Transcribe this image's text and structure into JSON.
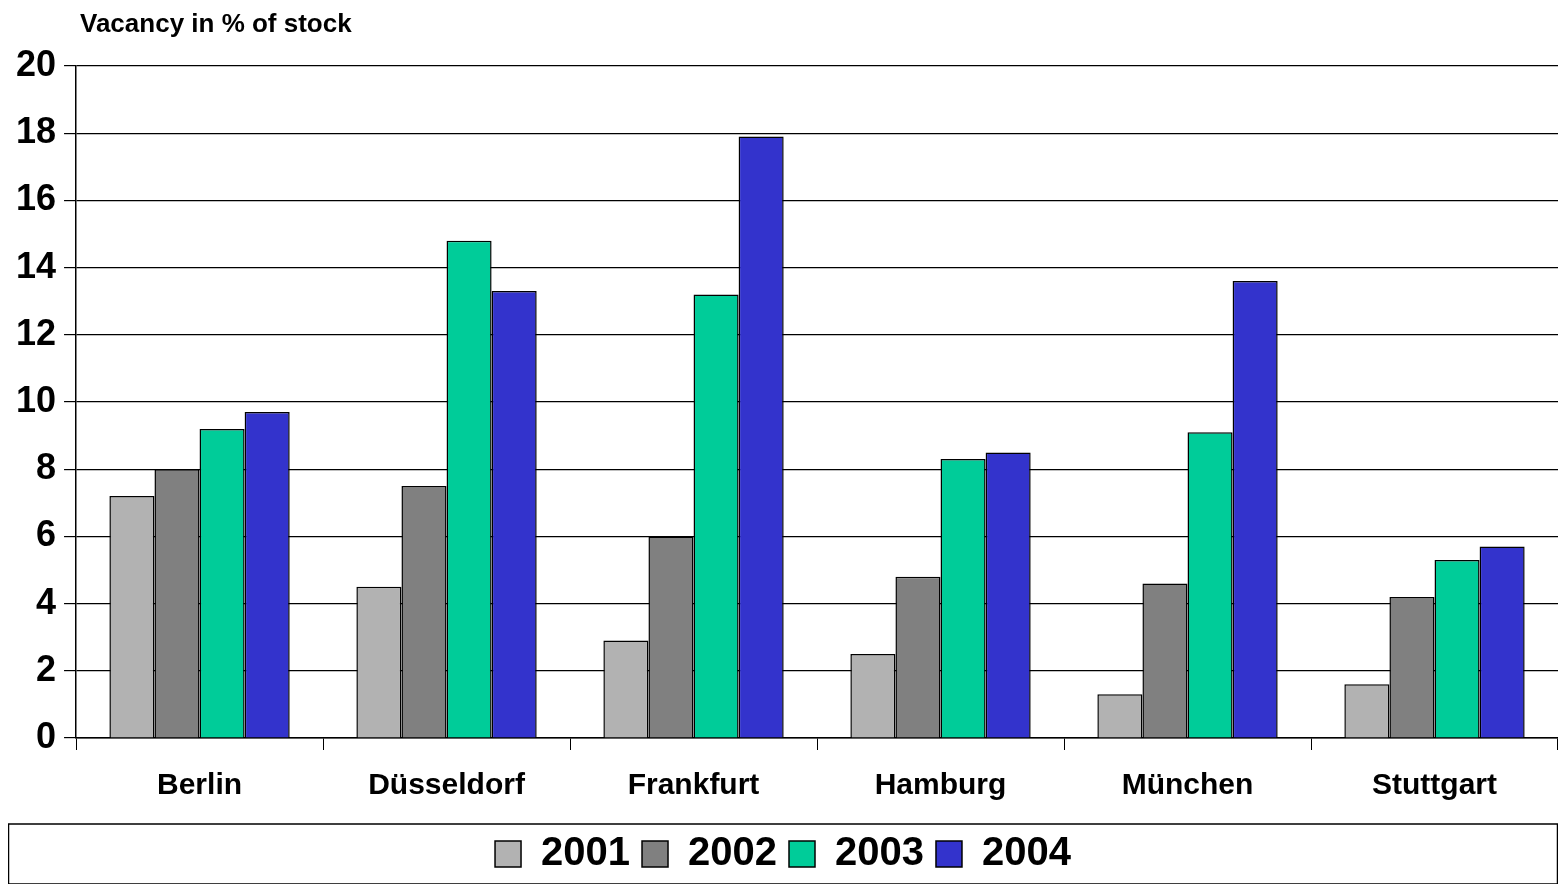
{
  "chart_data": {
    "type": "bar",
    "ylabel": "Vacancy in % of stock",
    "categories": [
      "Berlin",
      "Düsseldorf",
      "Frankfurt",
      "Hamburg",
      "München",
      "Stuttgart"
    ],
    "series": [
      {
        "name": "2001",
        "color": "#b2b2b2",
        "values": [
          7.2,
          4.5,
          2.9,
          2.5,
          1.3,
          1.6
        ]
      },
      {
        "name": "2002",
        "color": "#808080",
        "values": [
          8.0,
          7.5,
          6.0,
          4.8,
          4.6,
          4.2
        ]
      },
      {
        "name": "2003",
        "color": "#00cc99",
        "values": [
          9.2,
          14.8,
          13.2,
          8.3,
          9.1,
          5.3
        ]
      },
      {
        "name": "2004",
        "color": "#3333cc",
        "values": [
          9.7,
          13.3,
          17.9,
          8.5,
          13.6,
          5.7
        ]
      }
    ],
    "ylim": [
      0,
      20
    ],
    "yticks": [
      0,
      2,
      4,
      6,
      8,
      10,
      12,
      14,
      16,
      18,
      20
    ],
    "grid": "y",
    "legend": "bottom"
  }
}
